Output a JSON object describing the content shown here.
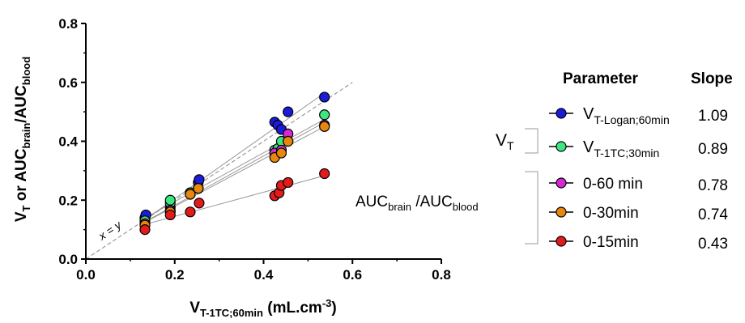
{
  "chart_data": {
    "type": "scatter",
    "xlabel": {
      "main": "V",
      "sub": "T-1TC;60min",
      "unit": " (mL.cm",
      "exp": "-3",
      "close": ")"
    },
    "ylabel": {
      "p1": "V",
      "s1": "T",
      "p2": " or AUC",
      "s2": "brain",
      "p3": "/AUC",
      "s3": "blood"
    },
    "xlim": [
      0.0,
      0.8
    ],
    "ylim": [
      0.0,
      0.8
    ],
    "xticks": [
      "0.0",
      "0.2",
      "0.4",
      "0.6",
      "0.8"
    ],
    "yticks": [
      "0.0",
      "0.2",
      "0.4",
      "0.6",
      "0.8"
    ],
    "identity_label": "x = y",
    "legend": {
      "header_parameter": "Parameter",
      "header_slope": "Slope",
      "group1": {
        "main": "V",
        "sub": "T"
      },
      "group2": {
        "p1": "AUC",
        "s1": "brain",
        "p2": " /AUC",
        "s2": "blood"
      }
    },
    "series": [
      {
        "name_main": "V",
        "name_sub": "T-Logan;60min",
        "slope": "1.09",
        "color": "#1b1bdc",
        "x": [
          0.133,
          0.135,
          0.19,
          0.235,
          0.253,
          0.255,
          0.425,
          0.432,
          0.44,
          0.455,
          0.537
        ],
        "y": [
          0.14,
          0.15,
          0.175,
          0.225,
          0.26,
          0.27,
          0.465,
          0.455,
          0.44,
          0.5,
          0.55
        ]
      },
      {
        "name_main": "V",
        "name_sub": "T-1TC;30min",
        "slope": "0.89",
        "color": "#3ee880",
        "x": [
          0.133,
          0.19,
          0.19,
          0.235,
          0.253,
          0.425,
          0.432,
          0.44,
          0.455,
          0.537
        ],
        "y": [
          0.13,
          0.19,
          0.2,
          0.225,
          0.24,
          0.37,
          0.375,
          0.4,
          0.4,
          0.49
        ]
      },
      {
        "name": "0-60 min",
        "slope": "0.78",
        "color": "#d629d6",
        "x": [
          0.133,
          0.19,
          0.235,
          0.253,
          0.425,
          0.44,
          0.455,
          0.537
        ],
        "y": [
          0.12,
          0.165,
          0.22,
          0.24,
          0.36,
          0.37,
          0.425,
          0.455
        ]
      },
      {
        "name": "0-30min",
        "slope": "0.74",
        "color": "#e8870e",
        "x": [
          0.133,
          0.19,
          0.235,
          0.253,
          0.425,
          0.44,
          0.455,
          0.537
        ],
        "y": [
          0.115,
          0.16,
          0.22,
          0.24,
          0.345,
          0.36,
          0.4,
          0.45
        ]
      },
      {
        "name": "0-15min",
        "slope": "0.43",
        "color": "#e21b1b",
        "x": [
          0.133,
          0.19,
          0.235,
          0.255,
          0.425,
          0.435,
          0.44,
          0.455,
          0.537
        ],
        "y": [
          0.1,
          0.15,
          0.16,
          0.19,
          0.215,
          0.225,
          0.25,
          0.26,
          0.29
        ]
      }
    ]
  }
}
